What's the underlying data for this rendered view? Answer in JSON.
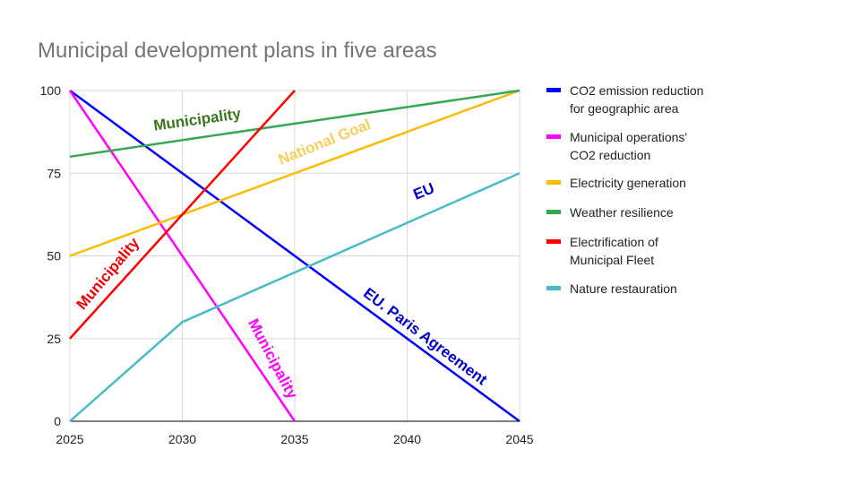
{
  "chart_data": {
    "type": "line",
    "title": "Municipal development plans in five areas",
    "xlabel": "",
    "ylabel": "",
    "xlim": [
      2025,
      2045
    ],
    "ylim": [
      0,
      100
    ],
    "x_ticks": [
      "2025",
      "2030",
      "2035",
      "2040",
      "2045"
    ],
    "y_ticks": [
      "0",
      "25",
      "50",
      "75",
      "100"
    ],
    "grid": true,
    "legend_position": "right",
    "series": [
      {
        "name": "CO2 emission reduction for geographic area",
        "name_lines": [
          "CO2 emission reduction",
          "for geographic area"
        ],
        "color": "#0000ff",
        "points": [
          [
            2025,
            100
          ],
          [
            2045,
            0
          ]
        ]
      },
      {
        "name": "Municipal operations' CO2 reduction",
        "name_lines": [
          "Municipal operations'",
          "CO2 reduction"
        ],
        "color": "#ff00ff",
        "points": [
          [
            2025,
            100
          ],
          [
            2035,
            0
          ]
        ]
      },
      {
        "name": "Electricity generation",
        "name_lines": [
          "Electricity generation"
        ],
        "color": "#fbbc04",
        "points": [
          [
            2025,
            50
          ],
          [
            2045,
            100
          ]
        ]
      },
      {
        "name": "Weather resilience",
        "name_lines": [
          "Weather resilience"
        ],
        "color": "#34a853",
        "points": [
          [
            2025,
            80
          ],
          [
            2045,
            100
          ]
        ]
      },
      {
        "name": "Electrification of Municipal Fleet",
        "name_lines": [
          "Electrification of",
          "Municipal Fleet"
        ],
        "color": "#ff0000",
        "points": [
          [
            2025,
            25
          ],
          [
            2035,
            100
          ]
        ]
      },
      {
        "name": "Nature restauration",
        "name_lines": [
          "Nature restauration"
        ],
        "color": "#46bdc6",
        "points": [
          [
            2025,
            0
          ],
          [
            2030,
            30
          ],
          [
            2045,
            75
          ]
        ]
      }
    ],
    "annotations": [
      {
        "text": "Municipality",
        "color": "#38761d"
      },
      {
        "text": "National Goal",
        "color": "#f6cf5a"
      },
      {
        "text": "EU",
        "color": "#0000cc"
      },
      {
        "text": "Municipality",
        "color": "#ee0000"
      },
      {
        "text": "Municipality",
        "color": "#ff00ff"
      },
      {
        "text": "EU. Paris Agreement",
        "color": "#0000cc"
      }
    ]
  }
}
